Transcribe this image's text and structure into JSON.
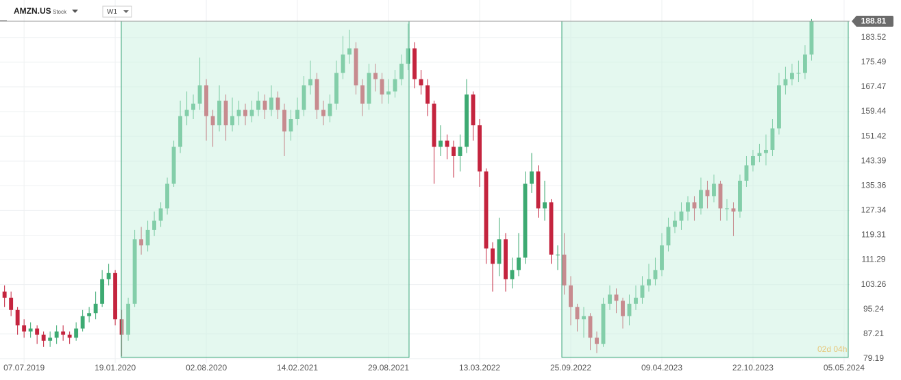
{
  "header": {
    "symbol": "AMZN.US",
    "kind": "Stock",
    "interval": "W1"
  },
  "timer": "02d 04h",
  "chart_data": {
    "type": "candlestick",
    "x": [
      -6,
      -4,
      -2,
      0,
      2,
      4,
      6,
      8,
      10,
      12,
      14,
      16,
      18,
      20,
      22,
      24,
      26,
      28,
      30,
      32,
      34,
      36,
      38,
      40,
      42,
      44,
      46,
      48,
      50,
      52,
      54,
      56,
      58,
      60,
      62,
      64,
      66,
      68,
      70,
      72,
      74,
      76,
      78,
      80,
      82,
      84,
      86,
      88,
      90,
      92,
      94,
      96,
      98,
      100,
      102,
      104,
      106,
      108,
      110,
      112,
      114,
      116,
      118,
      120,
      122,
      124,
      126,
      128,
      130,
      132,
      134,
      136,
      138,
      140,
      142,
      144,
      146,
      148,
      150,
      152,
      154,
      156,
      158,
      160,
      162,
      164,
      166,
      168,
      170,
      172,
      174,
      176,
      178,
      180,
      182,
      184,
      186,
      188,
      190,
      192,
      194,
      196,
      198,
      200,
      202,
      204,
      206,
      208,
      210,
      212,
      214,
      216,
      218,
      220,
      222,
      224,
      226,
      228,
      230,
      232,
      234,
      236,
      238,
      240,
      242
    ],
    "open": [
      101,
      99,
      95,
      90,
      88,
      89,
      87,
      85,
      86,
      88,
      87,
      86,
      89,
      93,
      94,
      97,
      105,
      107,
      92,
      87,
      97,
      118,
      116,
      121,
      124,
      128,
      136,
      148,
      158,
      160,
      162,
      168,
      158,
      155,
      163,
      155,
      158,
      160,
      158,
      160,
      163,
      160,
      164,
      160,
      153,
      157,
      160,
      168,
      170,
      160,
      158,
      162,
      172,
      178,
      180,
      168,
      162,
      172,
      170,
      165,
      166,
      170,
      175,
      180,
      170,
      168,
      162,
      148,
      150,
      148,
      145,
      148,
      165,
      155,
      140,
      115,
      110,
      118,
      105,
      108,
      112,
      136,
      140,
      128,
      130,
      113,
      113,
      103,
      96,
      92,
      93,
      86,
      84,
      97,
      100,
      98,
      93,
      97,
      99,
      103,
      105,
      108,
      116,
      122,
      124,
      127,
      130,
      128,
      134,
      132,
      136,
      128,
      128,
      127,
      137,
      142,
      145,
      146,
      147,
      154,
      168,
      170,
      172,
      172,
      178
    ],
    "high": [
      103,
      101,
      96,
      92,
      91,
      90,
      88,
      88,
      90,
      90,
      88,
      91,
      95,
      96,
      101,
      108,
      110,
      108,
      95,
      99,
      121,
      122,
      124,
      127,
      130,
      138,
      150,
      163,
      166,
      165,
      177,
      170,
      160,
      168,
      165,
      164,
      163,
      162,
      163,
      166,
      165,
      168,
      166,
      162,
      160,
      164,
      171,
      176,
      172,
      163,
      165,
      176,
      184,
      186,
      182,
      170,
      175,
      175,
      172,
      170,
      173,
      178,
      188,
      182,
      173,
      170,
      163,
      155,
      152,
      150,
      152,
      170,
      166,
      157,
      141,
      117,
      125,
      120,
      112,
      120,
      140,
      146,
      142,
      137,
      131,
      116,
      120,
      106,
      97,
      96,
      94,
      88,
      99,
      103,
      102,
      99,
      100,
      103,
      106,
      110,
      112,
      120,
      125,
      127,
      130,
      132,
      132,
      138,
      137,
      139,
      137,
      131,
      130,
      139,
      145,
      147,
      149,
      152,
      157,
      172,
      174,
      175,
      176,
      181,
      189.5
    ],
    "low": [
      96,
      93,
      87,
      86,
      86,
      84,
      83,
      83,
      84,
      85,
      84,
      85,
      88,
      91,
      92,
      96,
      103,
      90,
      80,
      85,
      96,
      113,
      114,
      119,
      122,
      126,
      135,
      146,
      155,
      157,
      160,
      150,
      148,
      153,
      150,
      153,
      155,
      155,
      156,
      158,
      157,
      158,
      157,
      145,
      150,
      155,
      158,
      165,
      157,
      155,
      156,
      160,
      170,
      175,
      165,
      158,
      160,
      166,
      162,
      162,
      164,
      168,
      173,
      167,
      165,
      158,
      136,
      145,
      144,
      138,
      140,
      146,
      150,
      135,
      110,
      101,
      106,
      101,
      102,
      106,
      110,
      133,
      125,
      124,
      110,
      108,
      100,
      90,
      88,
      86,
      82,
      81,
      83,
      95,
      94,
      89,
      90,
      95,
      97,
      101,
      103,
      106,
      114,
      120,
      121,
      124,
      124,
      126,
      128,
      130,
      124,
      124,
      119,
      125,
      135,
      140,
      143,
      142,
      145,
      152,
      165,
      168,
      169,
      170,
      176
    ],
    "close": [
      99,
      95,
      90,
      88,
      89,
      87,
      85,
      86,
      88,
      87,
      86,
      89,
      93,
      94,
      97,
      105,
      107,
      92,
      87,
      97,
      118,
      116,
      121,
      124,
      128,
      136,
      148,
      158,
      160,
      162,
      168,
      158,
      155,
      163,
      155,
      158,
      160,
      158,
      160,
      163,
      160,
      164,
      160,
      153,
      157,
      160,
      168,
      170,
      160,
      158,
      162,
      172,
      178,
      180,
      168,
      162,
      172,
      170,
      165,
      166,
      170,
      175,
      180,
      170,
      168,
      162,
      148,
      150,
      148,
      145,
      148,
      165,
      155,
      140,
      115,
      110,
      118,
      105,
      108,
      112,
      136,
      140,
      128,
      130,
      113,
      113,
      103,
      96,
      92,
      93,
      86,
      84,
      97,
      100,
      98,
      93,
      97,
      99,
      103,
      105,
      108,
      116,
      122,
      124,
      127,
      130,
      128,
      134,
      132,
      136,
      128,
      128,
      127,
      137,
      142,
      145,
      146,
      147,
      154,
      168,
      170,
      172,
      172,
      178,
      188.81
    ],
    "up_color": "#3daa72",
    "down_color": "#c4243e",
    "xlim": [
      -7.4,
      253.7
    ],
    "ylim": [
      75.6,
      195.7
    ],
    "xticks": [
      {
        "value": 0,
        "label": "07.07.2019"
      },
      {
        "value": 28,
        "label": "19.01.2020"
      },
      {
        "value": 56,
        "label": "02.08.2020"
      },
      {
        "value": 84,
        "label": "14.02.2021"
      },
      {
        "value": 112,
        "label": "29.08.2021"
      },
      {
        "value": 140,
        "label": "13.03.2022"
      },
      {
        "value": 168,
        "label": "25.09.2022"
      },
      {
        "value": 196,
        "label": "09.04.2023"
      },
      {
        "value": 224,
        "label": "22.10.2023"
      },
      {
        "value": 252,
        "label": "05.05.2024"
      }
    ],
    "yticks": [
      79.19,
      87.21,
      95.24,
      103.26,
      111.29,
      119.31,
      127.34,
      135.36,
      143.39,
      151.42,
      159.44,
      167.47,
      175.49,
      183.52
    ],
    "last_price": 188.81,
    "grid": true
  }
}
